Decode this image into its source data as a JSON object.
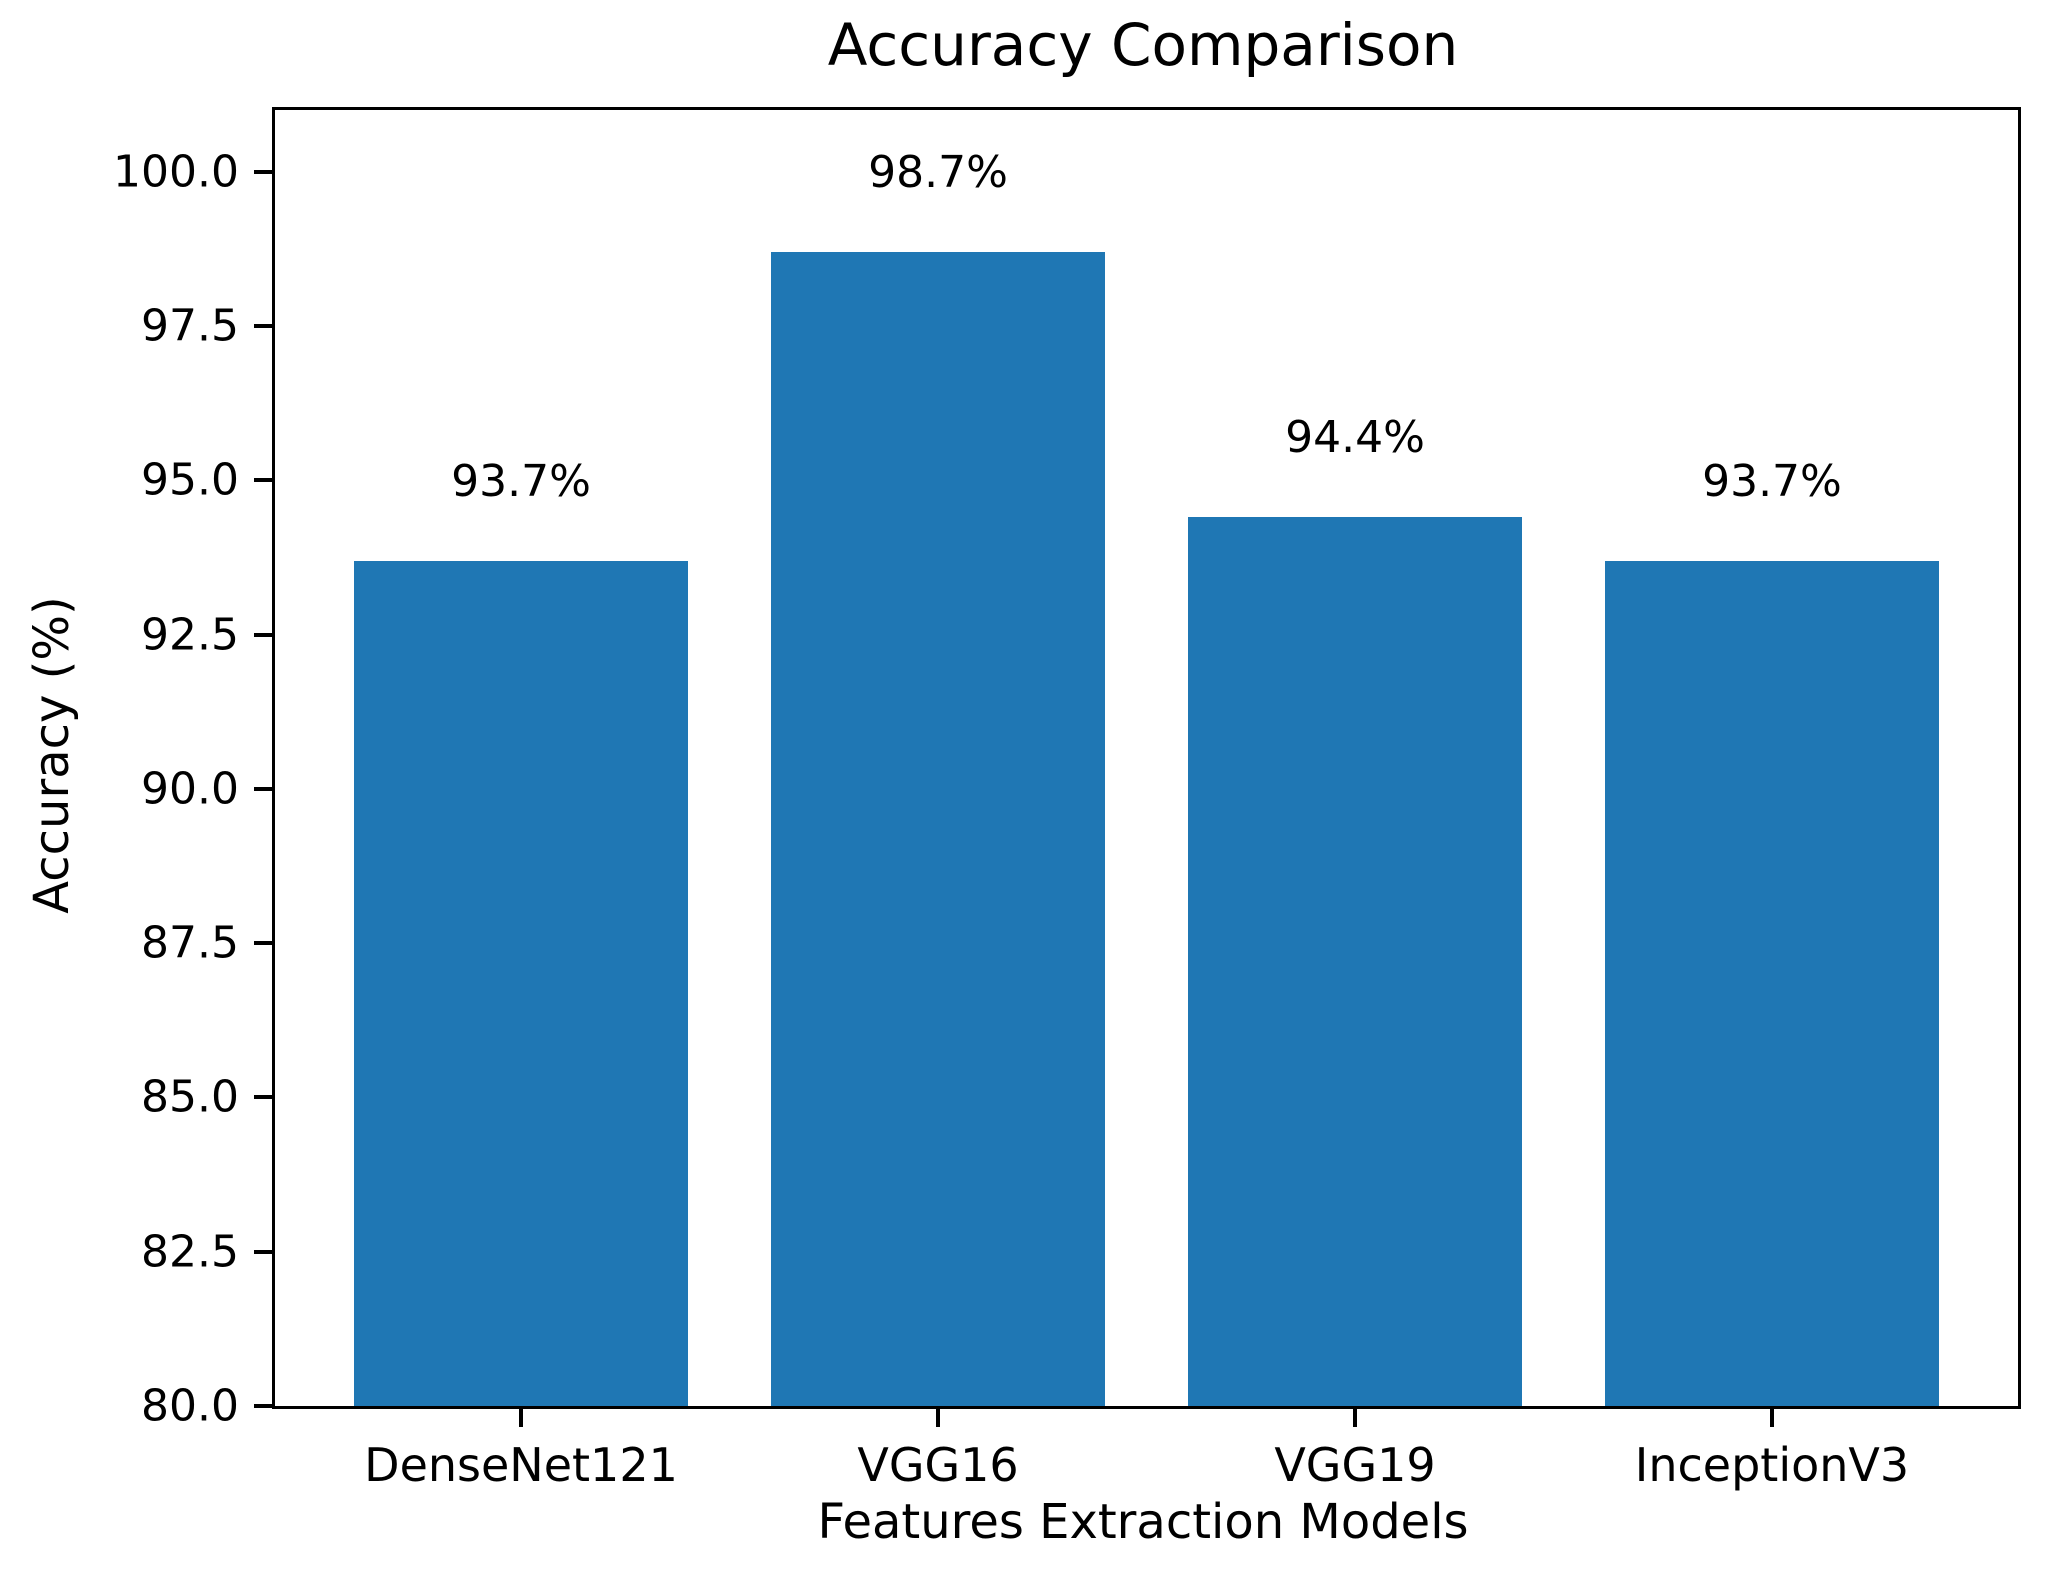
{
  "chart_data": {
    "type": "bar",
    "title": "Accuracy Comparison",
    "xlabel": "Features Extraction Models",
    "ylabel": "Accuracy (%)",
    "categories": [
      "DenseNet121",
      "VGG16",
      "VGG19",
      "InceptionV3"
    ],
    "values": [
      93.7,
      98.7,
      94.4,
      93.7
    ],
    "bar_labels": [
      "93.7%",
      "98.7%",
      "94.4%",
      "93.7%"
    ],
    "ylim": [
      80,
      101
    ],
    "yticks": [
      80.0,
      82.5,
      85.0,
      87.5,
      90.0,
      92.5,
      95.0,
      97.5,
      100.0
    ],
    "ytick_labels": [
      "80.0",
      "82.5",
      "85.0",
      "87.5",
      "90.0",
      "92.5",
      "95.0",
      "97.5",
      "100.0"
    ],
    "bar_color": "#1f77b4",
    "axis_color": "#000000",
    "grid": false,
    "legend_position": "none"
  }
}
